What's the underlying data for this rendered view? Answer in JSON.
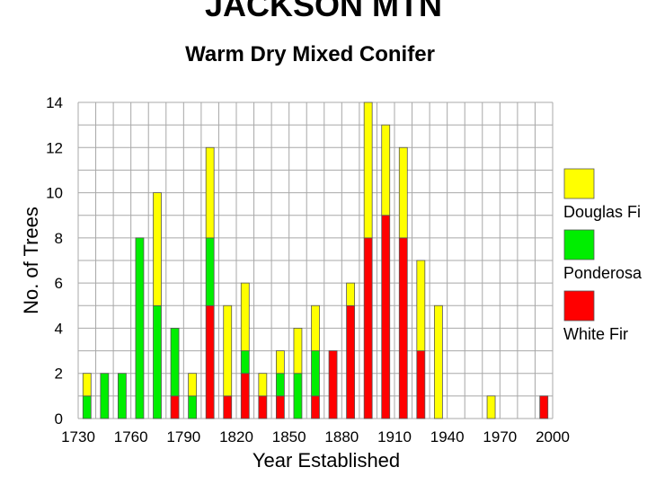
{
  "page": {
    "title": "JACKSON MTN",
    "subtitle": "Warm Dry Mixed Conifer"
  },
  "chart_data": {
    "type": "bar",
    "stacked": true,
    "title": "JACKSON MTN",
    "subtitle": "Warm Dry Mixed Conifer",
    "xlabel": "Year Established",
    "ylabel": "No. of Trees",
    "xlim": [
      1730,
      2000
    ],
    "ylim": [
      0,
      14
    ],
    "x_ticks": [
      1730,
      1760,
      1790,
      1820,
      1850,
      1880,
      1910,
      1940,
      1970,
      2000
    ],
    "y_ticks": [
      0,
      2,
      4,
      6,
      8,
      10,
      12,
      14
    ],
    "grid": true,
    "legend_position": "right",
    "x": [
      1735,
      1745,
      1755,
      1765,
      1775,
      1785,
      1795,
      1805,
      1815,
      1825,
      1835,
      1845,
      1855,
      1865,
      1875,
      1885,
      1895,
      1905,
      1915,
      1925,
      1935,
      1945,
      1965,
      1995
    ],
    "series": [
      {
        "name": "White Fir",
        "color": "#ff0000",
        "values": [
          0,
          0,
          0,
          0,
          0,
          1,
          0,
          5,
          1,
          2,
          1,
          1,
          0,
          1,
          3,
          5,
          8,
          9,
          8,
          3,
          0,
          0,
          0,
          1
        ]
      },
      {
        "name": "Ponderosa",
        "color": "#00ee00",
        "values": [
          1,
          2,
          2,
          8,
          5,
          3,
          1,
          3,
          0,
          1,
          0,
          1,
          2,
          2,
          0,
          0,
          0,
          0,
          0,
          0,
          0,
          0,
          0,
          0
        ]
      },
      {
        "name": "Douglas Fi",
        "color": "#ffff00",
        "values": [
          1,
          0,
          0,
          0,
          5,
          0,
          1,
          4,
          4,
          3,
          1,
          1,
          2,
          2,
          0,
          1,
          6,
          4,
          4,
          4,
          5,
          0,
          1,
          0
        ]
      }
    ]
  }
}
